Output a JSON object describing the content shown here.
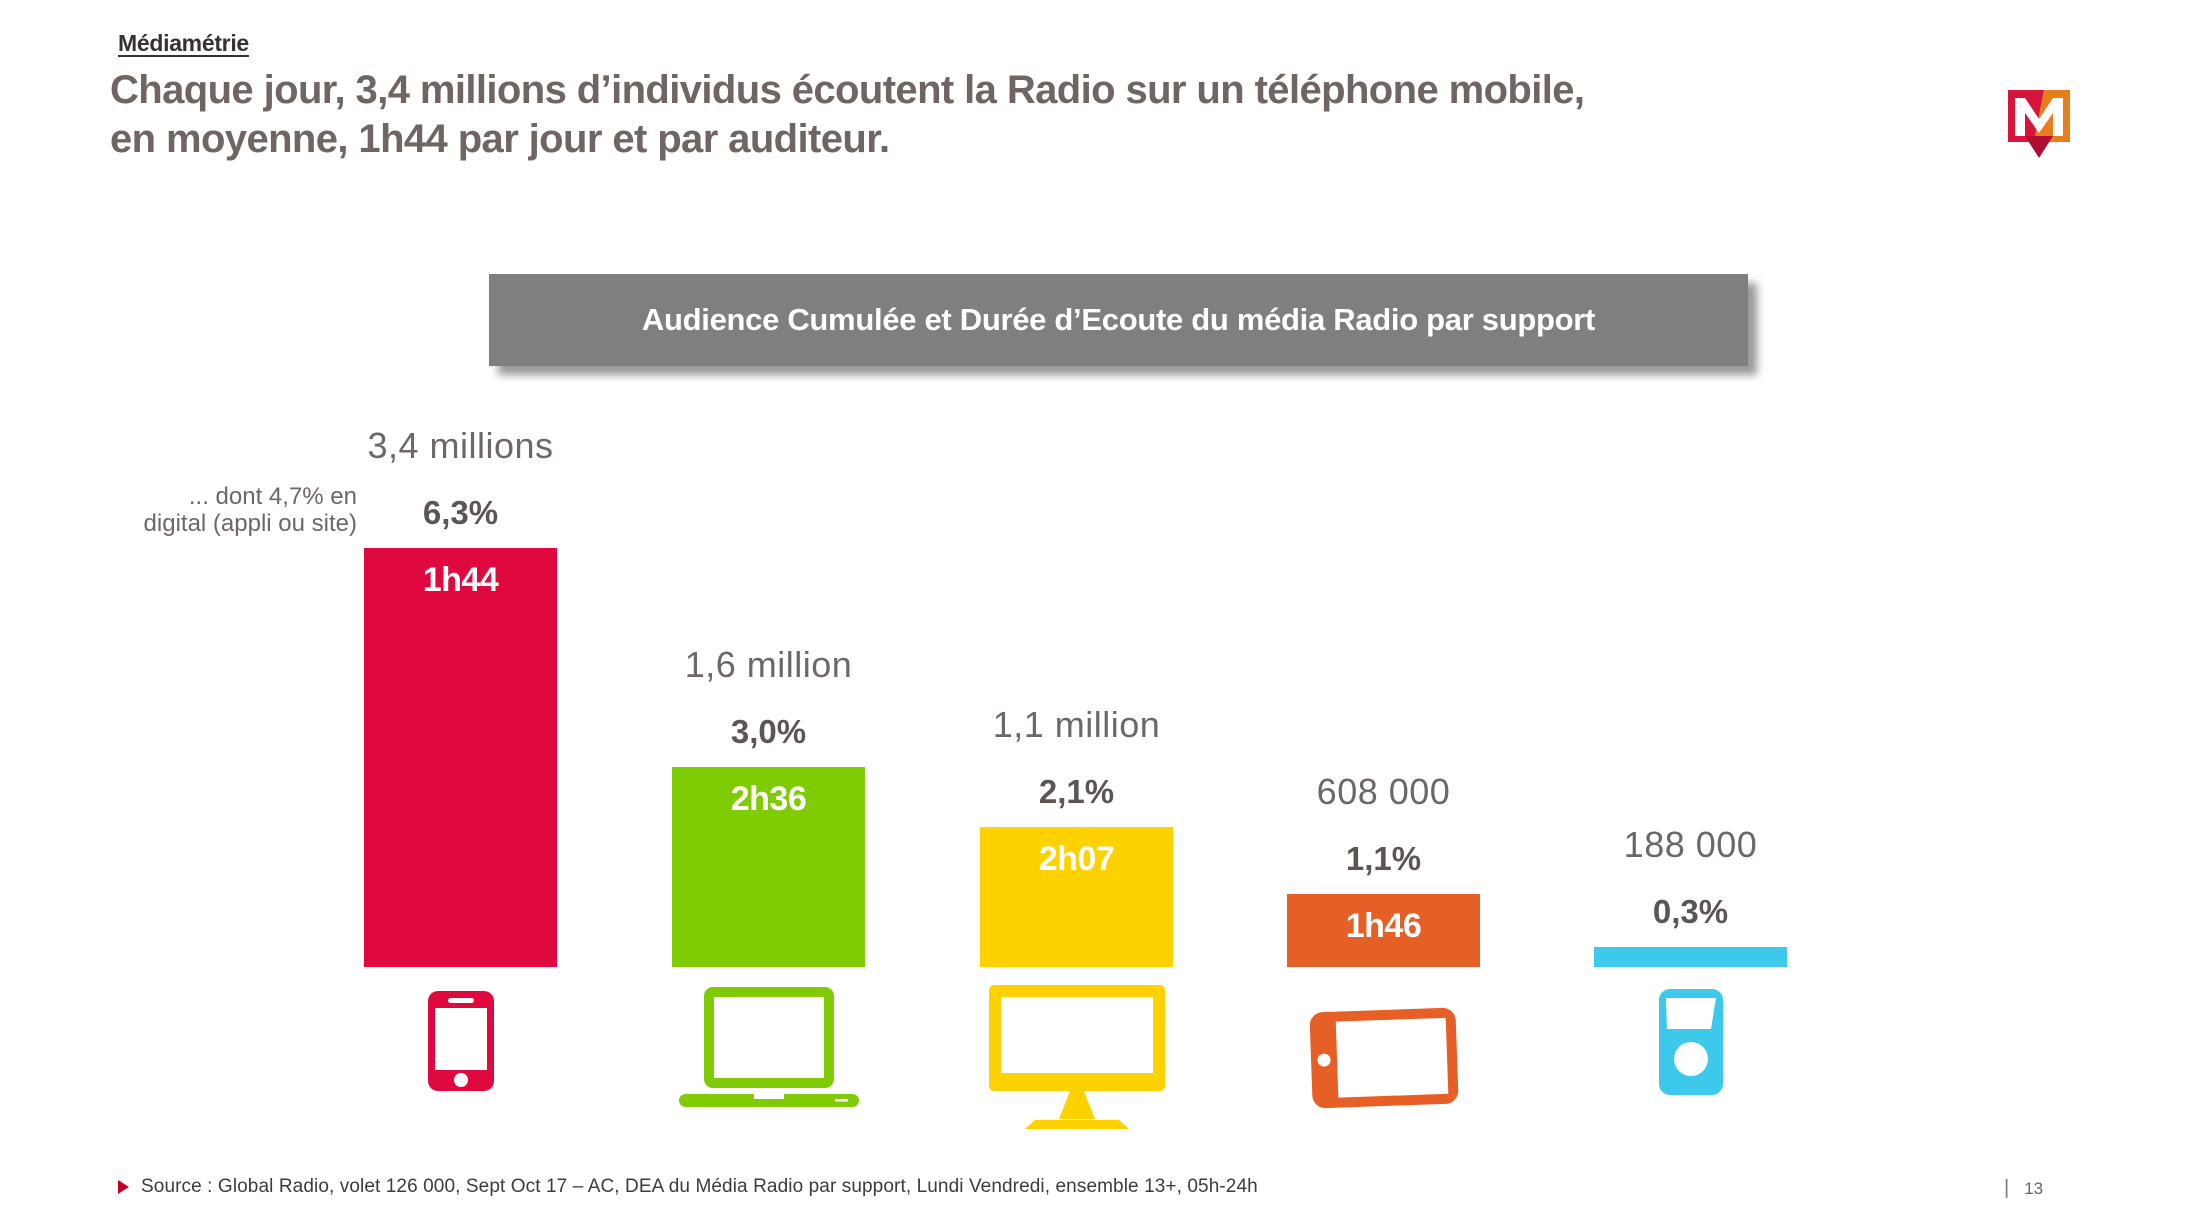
{
  "header": {
    "brand": "Médiamétrie",
    "title_line1": "Chaque jour, 3,4 millions d’individus écoutent la Radio sur un téléphone mobile,",
    "title_line2": "en moyenne, 1h44 par jour et par auditeur."
  },
  "banner": {
    "label": "Audience Cumulée et Durée d’Ecoute du média Radio par support"
  },
  "annotation": {
    "line1": "... dont 4,7% en",
    "line2": "digital (appli ou site)"
  },
  "chart_data": {
    "type": "bar",
    "title": "Audience Cumulée et Durée d’Ecoute du média Radio par support",
    "categories": [
      "Téléphone mobile",
      "Ordinateur portable",
      "Ordinateur fixe",
      "Tablette",
      "Baladeur"
    ],
    "series": [
      {
        "name": "Audience Cumulée (individus)",
        "values": [
          3400000,
          1600000,
          1100000,
          608000,
          188000
        ]
      },
      {
        "name": "Audience Cumulée (%)",
        "values": [
          6.3,
          3.0,
          2.1,
          1.1,
          0.3
        ]
      },
      {
        "name": "Durée d'Ecoute",
        "values": [
          "1h44",
          "2h36",
          "2h07",
          "1h46",
          null
        ]
      }
    ],
    "ylim": [
      0,
      6.3
    ],
    "grid": false,
    "legend_position": "none",
    "annotation": "... dont 4,7% en digital (appli ou site)"
  },
  "bars": [
    {
      "audience_label": "3,4 millions",
      "pct_label": "6,3%",
      "pct": 6.3,
      "duration": "1h44",
      "color": "#E0093F",
      "icon": "smartphone-icon"
    },
    {
      "audience_label": "1,6 million",
      "pct_label": "3,0%",
      "pct": 3.0,
      "duration": "2h36",
      "color": "#7FCC04",
      "icon": "laptop-icon"
    },
    {
      "audience_label": "1,1 million",
      "pct_label": "2,1%",
      "pct": 2.1,
      "duration": "2h07",
      "color": "#FDD200",
      "icon": "desktop-monitor-icon"
    },
    {
      "audience_label": "608 000",
      "pct_label": "1,1%",
      "pct": 1.1,
      "duration": "1h46",
      "color": "#E55F27",
      "icon": "tablet-icon"
    },
    {
      "audience_label": "188 000",
      "pct_label": "0,3%",
      "pct": 0.3,
      "duration": "",
      "color": "#3DC9EB",
      "icon": "media-player-icon"
    }
  ],
  "logo_colors": {
    "red": "#D8143C",
    "orange": "#E87D1E",
    "arrow": "#B00D33"
  },
  "footer": {
    "source": "Source : Global Radio, volet 126 000, Sept Oct 17 – AC, DEA du Média Radio par support, Lundi Vendredi, ensemble 13+, 05h-24h",
    "page_number": "13",
    "separator": "|"
  }
}
